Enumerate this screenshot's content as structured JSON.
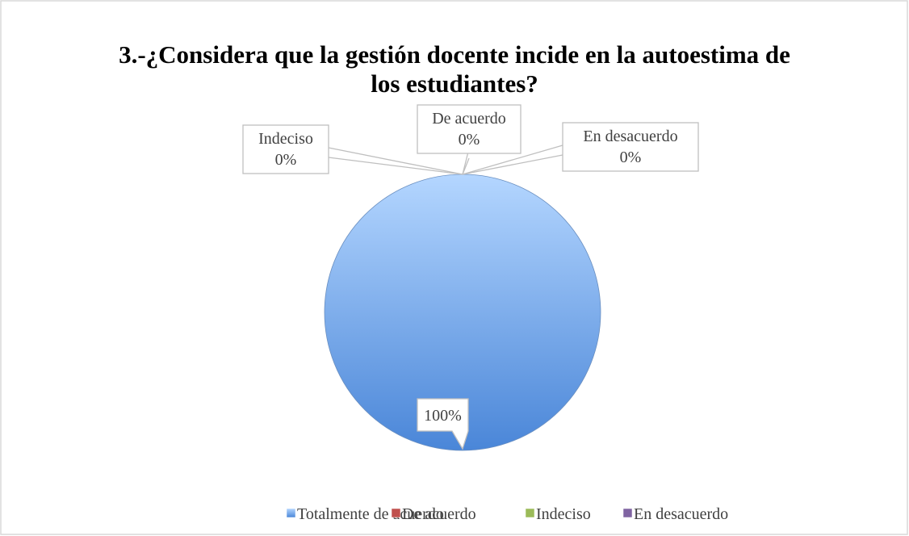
{
  "chart_data": {
    "type": "pie",
    "title": "3.-¿Considera que la gestión docente incide en la autoestima de los estudiantes?",
    "categories": [
      "Totalmente de acuerdo",
      "De acuerdo",
      "Indeciso",
      "En desacuerdo"
    ],
    "values": [
      100,
      0,
      0,
      0
    ],
    "value_labels": [
      "100%",
      "0%",
      "0%",
      "0%"
    ],
    "colors": [
      "#4a86d8",
      "#c0504d",
      "#9bbb59",
      "#8064a2"
    ],
    "legend": "bottom"
  }
}
